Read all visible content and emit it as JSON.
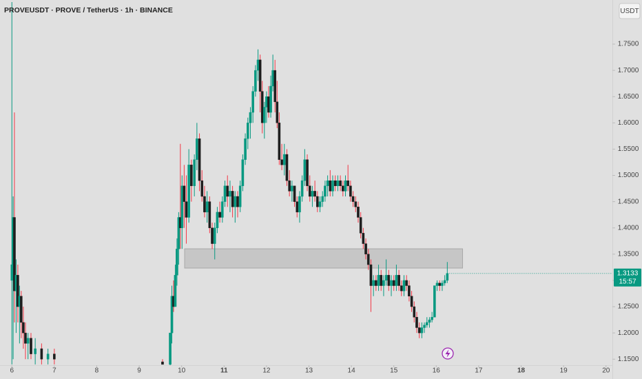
{
  "chart_data": {
    "type": "candlestick",
    "title": "PROVEUSDT · PROVE / TetherUS · 1h · BINANCE",
    "currency": "USDT",
    "up_color": "#089981",
    "down_color": "#f23645",
    "xlim": [
      5.72,
      20.15
    ],
    "ylim": [
      1.1385,
      1.834
    ],
    "xticks": [
      6,
      7,
      8,
      9,
      10,
      11,
      12,
      13,
      14,
      15,
      16,
      17,
      18,
      19,
      20
    ],
    "bold_xticks": [
      11,
      18
    ],
    "yticks": [
      {
        "value": 1.15,
        "label": "1.1500"
      },
      {
        "value": 1.2,
        "label": "1.2000"
      },
      {
        "value": 1.25,
        "label": "1.2500"
      },
      {
        "value": 1.3,
        "label": "1.3000"
      },
      {
        "value": 1.35,
        "label": "1.3500"
      },
      {
        "value": 1.4,
        "label": "1.4000"
      },
      {
        "value": 1.45,
        "label": "1.4500"
      },
      {
        "value": 1.5,
        "label": "1.5000"
      },
      {
        "value": 1.55,
        "label": "1.5500"
      },
      {
        "value": 1.6,
        "label": "1.6000"
      },
      {
        "value": 1.65,
        "label": "1.6500"
      },
      {
        "value": 1.7,
        "label": "1.7000"
      },
      {
        "value": 1.75,
        "label": "1.7500"
      }
    ],
    "last_price": {
      "value": 1.3133,
      "label": "1.3133"
    },
    "countdown": "15:57",
    "zone": {
      "x": [
        10.07,
        16.62
      ],
      "y": [
        1.3235,
        1.3602
      ]
    },
    "candles": [
      [
        6.0,
        1.3,
        1.83,
        1.14,
        1.33
      ],
      [
        6.03,
        1.33,
        1.46,
        1.15,
        1.42
      ],
      [
        6.06,
        1.42,
        1.62,
        1.22,
        1.28
      ],
      [
        6.1,
        1.28,
        1.34,
        1.2,
        1.31
      ],
      [
        6.14,
        1.31,
        1.33,
        1.22,
        1.25
      ],
      [
        6.18,
        1.25,
        1.29,
        1.18,
        1.27
      ],
      [
        6.22,
        1.27,
        1.28,
        1.19,
        1.22
      ],
      [
        6.27,
        1.22,
        1.25,
        1.17,
        1.2
      ],
      [
        6.32,
        1.2,
        1.22,
        1.15,
        1.18
      ],
      [
        6.38,
        1.18,
        1.2,
        1.15,
        1.19
      ],
      [
        6.45,
        1.19,
        1.2,
        1.15,
        1.16
      ],
      [
        6.55,
        1.16,
        1.19,
        1.14,
        1.17
      ],
      [
        6.7,
        1.17,
        1.18,
        1.14,
        1.15
      ],
      [
        6.85,
        1.15,
        1.17,
        1.14,
        1.16
      ],
      [
        7.0,
        1.16,
        1.17,
        1.14,
        1.15
      ],
      [
        9.55,
        1.145,
        1.15,
        1.14,
        1.14
      ],
      [
        9.73,
        1.14,
        1.2,
        1.13,
        1.2
      ],
      [
        9.77,
        1.2,
        1.29,
        1.18,
        1.27
      ],
      [
        9.81,
        1.27,
        1.3,
        1.24,
        1.25
      ],
      [
        9.85,
        1.25,
        1.33,
        1.25,
        1.31
      ],
      [
        9.89,
        1.31,
        1.38,
        1.29,
        1.36
      ],
      [
        9.93,
        1.36,
        1.43,
        1.33,
        1.42
      ],
      [
        9.97,
        1.42,
        1.56,
        1.36,
        1.4
      ],
      [
        10.01,
        1.4,
        1.5,
        1.36,
        1.48
      ],
      [
        10.06,
        1.48,
        1.52,
        1.4,
        1.45
      ],
      [
        10.11,
        1.45,
        1.5,
        1.37,
        1.42
      ],
      [
        10.17,
        1.42,
        1.55,
        1.41,
        1.52
      ],
      [
        10.23,
        1.52,
        1.53,
        1.45,
        1.48
      ],
      [
        10.3,
        1.48,
        1.54,
        1.46,
        1.53
      ],
      [
        10.36,
        1.53,
        1.6,
        1.51,
        1.57
      ],
      [
        10.42,
        1.57,
        1.58,
        1.47,
        1.49
      ],
      [
        10.48,
        1.49,
        1.51,
        1.45,
        1.46
      ],
      [
        10.54,
        1.46,
        1.48,
        1.42,
        1.43
      ],
      [
        10.6,
        1.43,
        1.47,
        1.41,
        1.45
      ],
      [
        10.66,
        1.45,
        1.46,
        1.39,
        1.4
      ],
      [
        10.72,
        1.4,
        1.41,
        1.36,
        1.37
      ],
      [
        10.78,
        1.37,
        1.41,
        1.34,
        1.4
      ],
      [
        10.84,
        1.4,
        1.44,
        1.39,
        1.43
      ],
      [
        10.9,
        1.43,
        1.45,
        1.41,
        1.42
      ],
      [
        10.96,
        1.42,
        1.46,
        1.41,
        1.45
      ],
      [
        11.02,
        1.45,
        1.49,
        1.44,
        1.48
      ],
      [
        11.08,
        1.48,
        1.5,
        1.44,
        1.46
      ],
      [
        11.14,
        1.46,
        1.49,
        1.43,
        1.47
      ],
      [
        11.2,
        1.47,
        1.48,
        1.42,
        1.44
      ],
      [
        11.26,
        1.44,
        1.47,
        1.41,
        1.46
      ],
      [
        11.32,
        1.46,
        1.47,
        1.42,
        1.44
      ],
      [
        11.38,
        1.44,
        1.49,
        1.43,
        1.48
      ],
      [
        11.44,
        1.48,
        1.54,
        1.47,
        1.53
      ],
      [
        11.5,
        1.53,
        1.58,
        1.52,
        1.57
      ],
      [
        11.56,
        1.57,
        1.61,
        1.55,
        1.6
      ],
      [
        11.62,
        1.6,
        1.63,
        1.57,
        1.62
      ],
      [
        11.68,
        1.62,
        1.67,
        1.6,
        1.66
      ],
      [
        11.74,
        1.66,
        1.71,
        1.65,
        1.7
      ],
      [
        11.8,
        1.7,
        1.74,
        1.68,
        1.72
      ],
      [
        11.85,
        1.72,
        1.73,
        1.62,
        1.66
      ],
      [
        11.9,
        1.66,
        1.68,
        1.58,
        1.6
      ],
      [
        11.95,
        1.6,
        1.64,
        1.57,
        1.63
      ],
      [
        12.0,
        1.63,
        1.66,
        1.6,
        1.65
      ],
      [
        12.05,
        1.65,
        1.67,
        1.61,
        1.62
      ],
      [
        12.1,
        1.62,
        1.69,
        1.61,
        1.67
      ],
      [
        12.15,
        1.67,
        1.73,
        1.66,
        1.7
      ],
      [
        12.2,
        1.7,
        1.72,
        1.62,
        1.64
      ],
      [
        12.25,
        1.64,
        1.68,
        1.59,
        1.6
      ],
      [
        12.3,
        1.6,
        1.62,
        1.52,
        1.53
      ],
      [
        12.36,
        1.53,
        1.56,
        1.51,
        1.52
      ],
      [
        12.42,
        1.52,
        1.56,
        1.5,
        1.54
      ],
      [
        12.48,
        1.54,
        1.55,
        1.48,
        1.49
      ],
      [
        12.54,
        1.49,
        1.51,
        1.46,
        1.47
      ],
      [
        12.6,
        1.47,
        1.49,
        1.45,
        1.48
      ],
      [
        12.66,
        1.48,
        1.48,
        1.44,
        1.45
      ],
      [
        12.72,
        1.45,
        1.46,
        1.42,
        1.43
      ],
      [
        12.78,
        1.43,
        1.47,
        1.41,
        1.46
      ],
      [
        12.84,
        1.46,
        1.5,
        1.45,
        1.49
      ],
      [
        12.9,
        1.49,
        1.55,
        1.48,
        1.53
      ],
      [
        12.96,
        1.53,
        1.54,
        1.47,
        1.48
      ],
      [
        13.02,
        1.48,
        1.5,
        1.45,
        1.46
      ],
      [
        13.08,
        1.46,
        1.48,
        1.44,
        1.47
      ],
      [
        13.14,
        1.47,
        1.49,
        1.45,
        1.46
      ],
      [
        13.2,
        1.46,
        1.47,
        1.43,
        1.44
      ],
      [
        13.26,
        1.44,
        1.46,
        1.43,
        1.45
      ],
      [
        13.32,
        1.45,
        1.47,
        1.44,
        1.46
      ],
      [
        13.38,
        1.46,
        1.49,
        1.45,
        1.48
      ],
      [
        13.44,
        1.48,
        1.5,
        1.46,
        1.49
      ],
      [
        13.5,
        1.49,
        1.51,
        1.46,
        1.47
      ],
      [
        13.56,
        1.47,
        1.5,
        1.46,
        1.49
      ],
      [
        13.62,
        1.49,
        1.5,
        1.47,
        1.48
      ],
      [
        13.68,
        1.48,
        1.5,
        1.47,
        1.49
      ],
      [
        13.74,
        1.49,
        1.5,
        1.47,
        1.48
      ],
      [
        13.8,
        1.48,
        1.49,
        1.46,
        1.47
      ],
      [
        13.86,
        1.47,
        1.5,
        1.46,
        1.49
      ],
      [
        13.92,
        1.49,
        1.52,
        1.47,
        1.48
      ],
      [
        13.98,
        1.48,
        1.49,
        1.45,
        1.46
      ],
      [
        14.04,
        1.46,
        1.47,
        1.44,
        1.45
      ],
      [
        14.1,
        1.45,
        1.46,
        1.43,
        1.44
      ],
      [
        14.16,
        1.44,
        1.45,
        1.41,
        1.42
      ],
      [
        14.22,
        1.42,
        1.43,
        1.38,
        1.39
      ],
      [
        14.28,
        1.39,
        1.4,
        1.36,
        1.37
      ],
      [
        14.34,
        1.37,
        1.38,
        1.34,
        1.35
      ],
      [
        14.4,
        1.35,
        1.36,
        1.32,
        1.33
      ],
      [
        14.46,
        1.33,
        1.34,
        1.24,
        1.29
      ],
      [
        14.52,
        1.29,
        1.31,
        1.27,
        1.3
      ],
      [
        14.58,
        1.3,
        1.31,
        1.28,
        1.29
      ],
      [
        14.64,
        1.29,
        1.33,
        1.28,
        1.31
      ],
      [
        14.7,
        1.31,
        1.32,
        1.28,
        1.29
      ],
      [
        14.76,
        1.29,
        1.31,
        1.27,
        1.3
      ],
      [
        14.82,
        1.3,
        1.34,
        1.29,
        1.31
      ],
      [
        14.88,
        1.31,
        1.32,
        1.28,
        1.29
      ],
      [
        14.94,
        1.29,
        1.31,
        1.27,
        1.3
      ],
      [
        15.0,
        1.3,
        1.31,
        1.28,
        1.29
      ],
      [
        15.06,
        1.29,
        1.33,
        1.28,
        1.31
      ],
      [
        15.12,
        1.31,
        1.32,
        1.28,
        1.29
      ],
      [
        15.18,
        1.29,
        1.3,
        1.27,
        1.28
      ],
      [
        15.24,
        1.28,
        1.31,
        1.27,
        1.3
      ],
      [
        15.3,
        1.3,
        1.31,
        1.28,
        1.29
      ],
      [
        15.36,
        1.29,
        1.3,
        1.26,
        1.27
      ],
      [
        15.42,
        1.27,
        1.28,
        1.24,
        1.25
      ],
      [
        15.48,
        1.25,
        1.26,
        1.22,
        1.23
      ],
      [
        15.54,
        1.23,
        1.24,
        1.2,
        1.21
      ],
      [
        15.6,
        1.21,
        1.22,
        1.19,
        1.2
      ],
      [
        15.66,
        1.2,
        1.22,
        1.19,
        1.21
      ],
      [
        15.72,
        1.21,
        1.22,
        1.2,
        1.215
      ],
      [
        15.78,
        1.215,
        1.23,
        1.21,
        1.22
      ],
      [
        15.84,
        1.22,
        1.23,
        1.21,
        1.225
      ],
      [
        15.9,
        1.225,
        1.24,
        1.22,
        1.23
      ],
      [
        15.96,
        1.23,
        1.29,
        1.23,
        1.29
      ],
      [
        16.02,
        1.29,
        1.3,
        1.28,
        1.295
      ],
      [
        16.08,
        1.295,
        1.3,
        1.28,
        1.29
      ],
      [
        16.14,
        1.29,
        1.3,
        1.28,
        1.295
      ],
      [
        16.2,
        1.295,
        1.31,
        1.29,
        1.3
      ],
      [
        16.26,
        1.3,
        1.335,
        1.295,
        1.3133
      ]
    ]
  }
}
